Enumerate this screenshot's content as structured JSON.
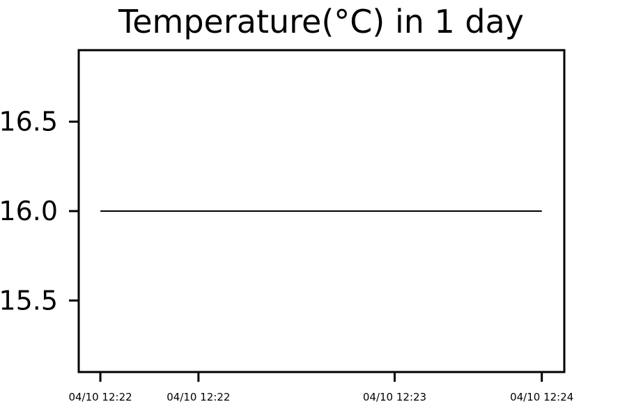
{
  "chart_data": {
    "type": "line",
    "title": "Temperature(°C) in 1 day",
    "xlabel": "",
    "ylabel": "",
    "x": [
      "04/10 12:22",
      "04/10 12:24"
    ],
    "series": [
      {
        "values": [
          16.0,
          16.0
        ],
        "color": "#000000"
      }
    ],
    "ylim": [
      15.1,
      16.9
    ],
    "yticks": [
      "16.5",
      "16.0",
      "15.5"
    ],
    "ytick_values": [
      16.5,
      16.0,
      15.5
    ],
    "xticks": [
      "04/10 12:22",
      "04/10 12:22",
      "04/10 12:23",
      "04/10 12:24"
    ],
    "grid": false,
    "legend": false
  }
}
